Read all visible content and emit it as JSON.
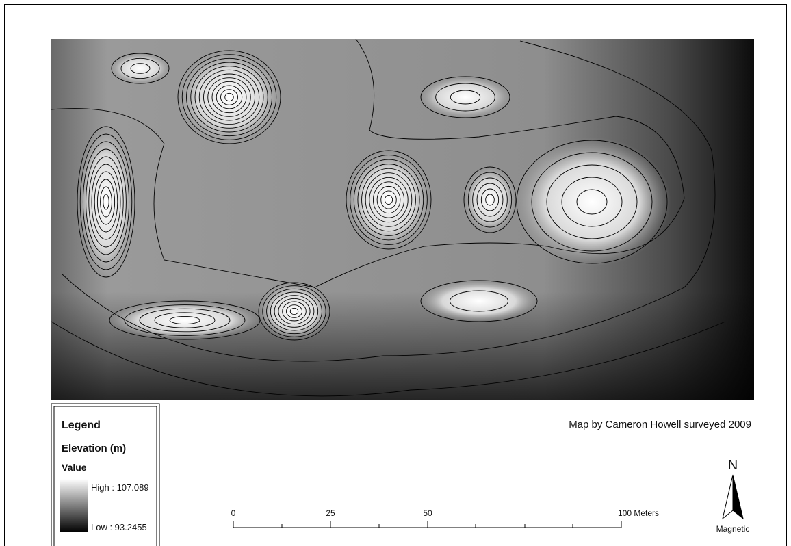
{
  "legend": {
    "title": "Legend",
    "layer": "Elevation (m)",
    "field": "Value",
    "high": "High : 107.089",
    "low": "Low : 93.2455"
  },
  "credit": "Map by Cameron Howell surveyed 2009",
  "scale_bar": {
    "labels": [
      "0",
      "25",
      "50",
      "100 Meters"
    ]
  },
  "north_arrow": {
    "letter": "N",
    "label": "Magnetic"
  }
}
